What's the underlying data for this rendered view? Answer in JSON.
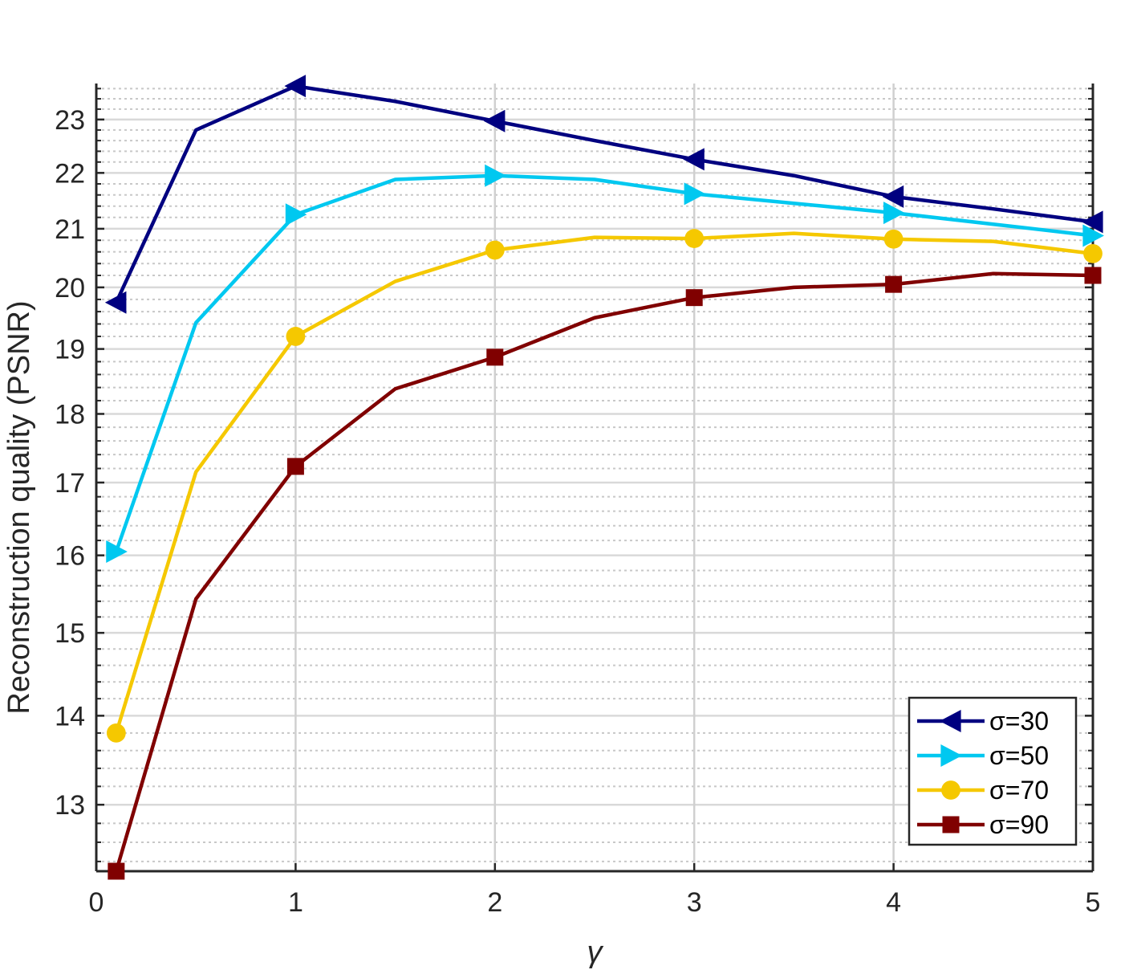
{
  "chart_data": {
    "type": "line",
    "title": "",
    "xlabel": "γ",
    "ylabel": "Reconstruction quality (PSNR)",
    "xlim": [
      0,
      5
    ],
    "ylim": [
      12.3,
      23.7
    ],
    "y_scale": "log",
    "grid": true,
    "minor_grid": true,
    "legend_position": "bottom-right",
    "x_ticks": [
      "0",
      "1",
      "2",
      "3",
      "4",
      "5"
    ],
    "y_ticks": [
      "13",
      "14",
      "15",
      "16",
      "17",
      "18",
      "19",
      "20",
      "21",
      "22",
      "23"
    ],
    "x": [
      0.1,
      0.5,
      1,
      1.5,
      2,
      2.5,
      3,
      3.5,
      4,
      4.5,
      5
    ],
    "series": [
      {
        "name": "σ=30",
        "color": "#000080",
        "marker": "triangle-left",
        "marker_at": [
          0.1,
          1,
          2,
          3,
          4,
          5
        ],
        "values": [
          19.75,
          22.8,
          23.65,
          23.35,
          22.97,
          22.6,
          22.25,
          21.95,
          21.57,
          21.35,
          21.12
        ]
      },
      {
        "name": "σ=50",
        "color": "#00c8f0",
        "marker": "triangle-right",
        "marker_at": [
          0.1,
          1,
          2,
          3,
          4,
          5
        ],
        "values": [
          16.05,
          19.42,
          21.25,
          21.88,
          21.95,
          21.88,
          21.62,
          21.45,
          21.28,
          21.08,
          20.88
        ]
      },
      {
        "name": "σ=70",
        "color": "#f5c800",
        "marker": "circle",
        "marker_at": [
          0.1,
          1,
          2,
          3,
          4,
          5
        ],
        "values": [
          13.8,
          17.15,
          19.2,
          20.1,
          20.63,
          20.85,
          20.83,
          20.92,
          20.82,
          20.78,
          20.57
        ]
      },
      {
        "name": "σ=90",
        "color": "#800000",
        "marker": "square",
        "marker_at": [
          0.1,
          1,
          2,
          3,
          4,
          5
        ],
        "values": [
          12.3,
          15.43,
          17.23,
          18.38,
          18.87,
          19.5,
          19.83,
          20.0,
          20.05,
          20.23,
          20.2
        ]
      }
    ]
  }
}
